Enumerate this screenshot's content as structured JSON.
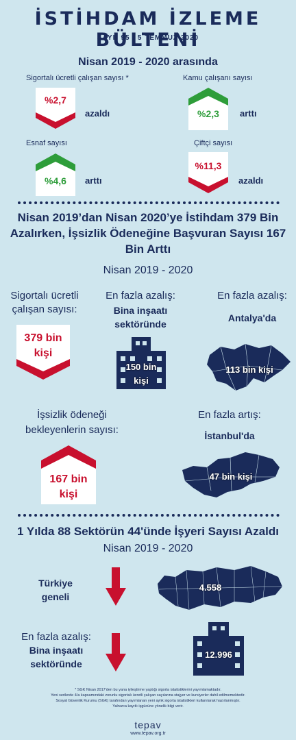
{
  "header": {
    "title": "İSTİHDAM İZLEME BÜLTENİ",
    "issue": "SAYI: 95 | 5 TEMMUZ 2020"
  },
  "section1": {
    "period": "Nisan 2019 - 2020 arasında",
    "items": [
      {
        "label": "Sigortalı ücretli çalışan sayısı *",
        "value": "%2,7",
        "trend": "azaldı",
        "direction": "down"
      },
      {
        "label": "Kamu çalışanı sayısı",
        "value": "%2,3",
        "trend": "arttı",
        "direction": "up"
      },
      {
        "label": "Esnaf sayısı",
        "value": "%4,6",
        "trend": "arttı",
        "direction": "up"
      },
      {
        "label": "Çiftçi sayısı",
        "value": "%11,3",
        "trend": "azaldı",
        "direction": "down"
      }
    ]
  },
  "section2": {
    "headline_line1": "Nisan 2019’dan Nisan 2020’ye İstihdam 379 Bin",
    "headline_line2": "Azalırken, İşsizlik Ödeneğine Başvuran Sayısı 167",
    "headline_line3": "Bin Arttı",
    "period": "Nisan 2019 - 2020",
    "employees_label_1": "Sigortalı ücretli",
    "employees_label_2": "çalışan sayısı:",
    "employees_value_1": "379 bin",
    "employees_value_2": "kişi",
    "sector_decrease_label": "En fazla azalış:",
    "sector_decrease_name_1": "Bina inşaatı",
    "sector_decrease_name_2": "sektöründe",
    "sector_decrease_value_1": "150 bin",
    "sector_decrease_value_2": "kişi",
    "province_decrease_label": "En fazla azalış:",
    "province_decrease_name": "Antalya'da",
    "province_decrease_value": "113 bin kişi",
    "unemp_label_1": "İşsizlik ödeneği",
    "unemp_label_2": "bekleyenlerin sayısı:",
    "unemp_value_1": "167 bin",
    "unemp_value_2": "kişi",
    "province_increase_label": "En fazla artış:",
    "province_increase_name": "İstanbul'da",
    "province_increase_value": "47 bin kişi"
  },
  "section3": {
    "headline": "1 Yılda 88 Sektörün 44'ünde İşyeri Sayısı Azaldı",
    "period": "Nisan 2019 - 2020",
    "turkey_label_1": "Türkiye",
    "turkey_label_2": "geneli",
    "turkey_value": "4.558",
    "sector_label": "En fazla azalış:",
    "sector_name_1": "Bina inşaatı",
    "sector_name_2": "sektöründe",
    "sector_value": "12.996"
  },
  "footer": {
    "note1": "* SGK Nisan 2017'den bu yana iyileştirme yaptığı sigorta istatistiklerini yayımlamaktadır.",
    "note2": "Yeni serilerde 4/a kapsamındaki zorunlu sigortalı ücretli çalışan sayılarına stajyer ve kursiyerler dahil edilmemektedir.",
    "note3": "Sosyal Güvenlik Kurumu (SGK) tarafından yayımlanan yeni aylık sigorta istatistikleri kullanılarak hazırlanmıştır.",
    "note4": "Yalnızca kayıtlı işgücüne yönelik bilgi verir.",
    "brand": "tepav",
    "site": "www.tepav.org.tr"
  },
  "colors": {
    "navy": "#1a2b5a",
    "red": "#c8102e",
    "green": "#2e9d3a",
    "bg": "#cfe6ee"
  }
}
